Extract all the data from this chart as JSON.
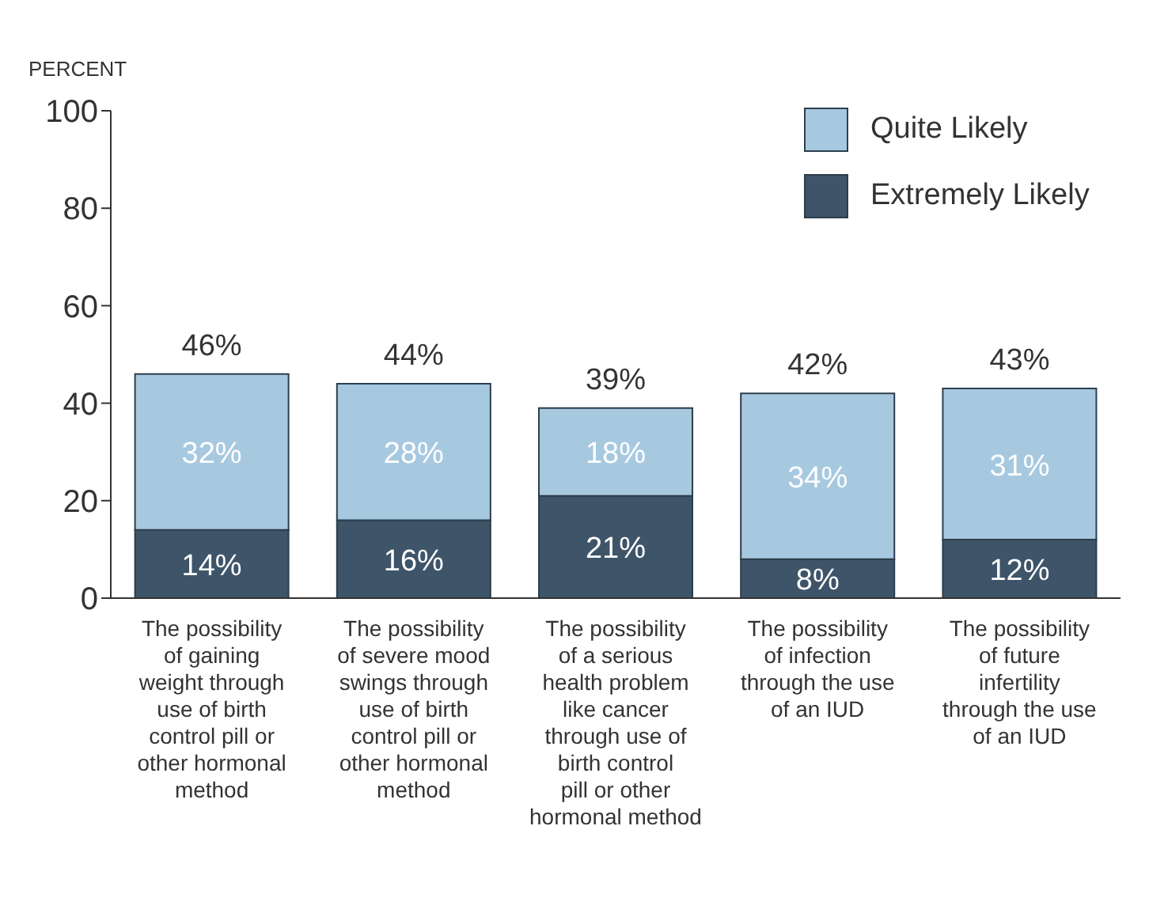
{
  "chart_data": {
    "type": "bar",
    "stacked": true,
    "ylabel": "PERCENT",
    "categories": [
      "The possibility of gaining weight through use of birth control pill or other hormonal method",
      "The possibility of severe mood swings through use of birth control pill or other hormonal method",
      "The possibility of a serious health problem like cancer through use of birth control pill or other hormonal method",
      "The possibility of infection through the use of an IUD",
      "The possibility of future infertility through the use of an IUD"
    ],
    "series": [
      {
        "name": "Extremely Likely",
        "color": "#3e5468",
        "values": [
          14,
          16,
          21,
          8,
          12
        ],
        "value_labels": [
          "14%",
          "16%",
          "21%",
          "8%",
          "12%"
        ]
      },
      {
        "name": "Quite Likely",
        "color": "#a7c9e0",
        "values": [
          32,
          28,
          18,
          34,
          31
        ],
        "value_labels": [
          "32%",
          "28%",
          "18%",
          "34%",
          "31%"
        ]
      }
    ],
    "totals": [
      "46%",
      "44%",
      "39%",
      "42%",
      "43%"
    ],
    "ylim": [
      0,
      100
    ],
    "yticks": [
      0,
      20,
      40,
      60,
      80,
      100
    ],
    "grid": false,
    "legend": "top right"
  }
}
